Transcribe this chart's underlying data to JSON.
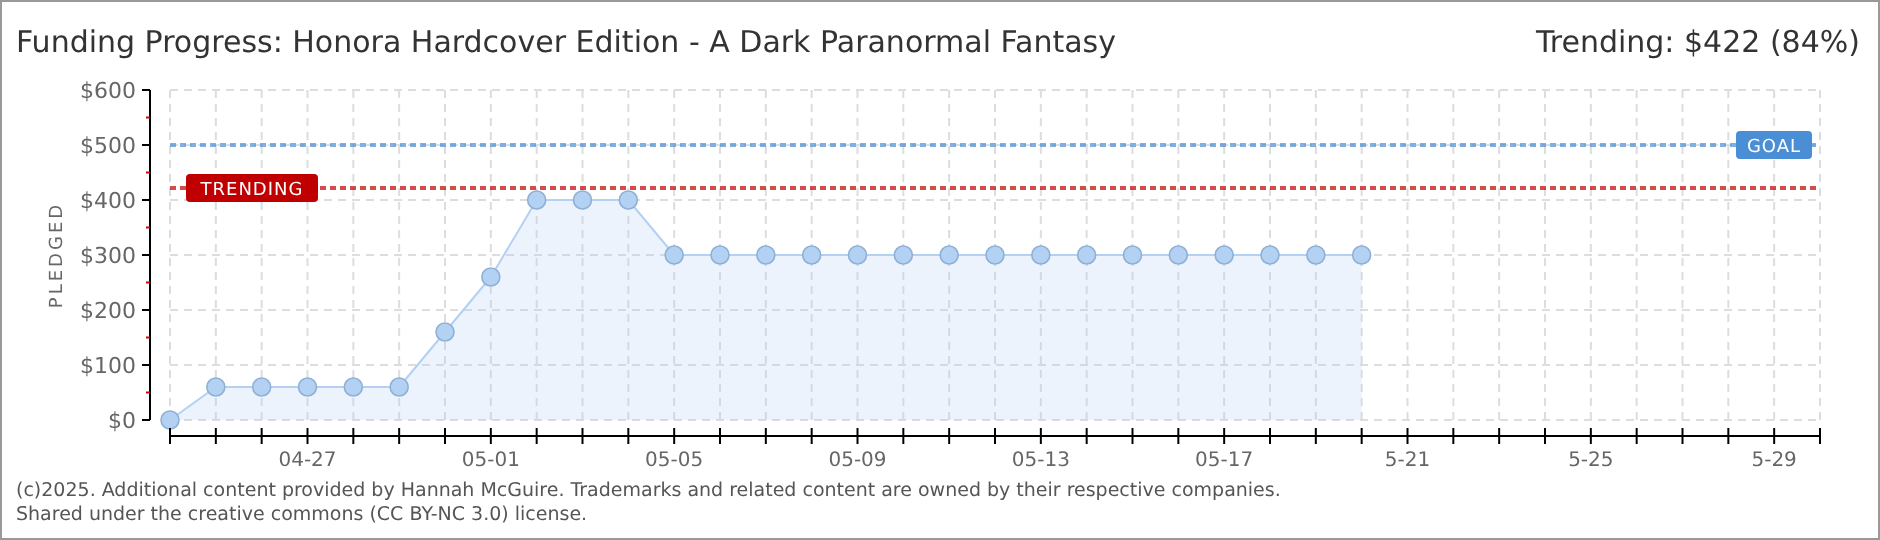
{
  "chart_data": {
    "type": "area",
    "title": "Funding Progress: Honora Hardcover Edition - A Dark Paranormal Fantasy",
    "subtitle": "Trending: $422 (84%)",
    "ylabel": "PLEDGED",
    "x": [
      "--04-24",
      "--04-25",
      "--04-26",
      "--04-27",
      "--04-28",
      "--04-29",
      "--04-30",
      "--05-01",
      "--05-02",
      "--05-03",
      "--05-04",
      "--05-05",
      "--05-06",
      "--05-07",
      "--05-08",
      "--05-09",
      "--05-10",
      "--05-11",
      "--05-12",
      "--05-13",
      "--05-14",
      "--05-15",
      "--05-16",
      "--05-17",
      "--05-18",
      "--05-19",
      "--05-20"
    ],
    "series": [
      {
        "color": "#b3d1f2",
        "values": [
          0,
          60,
          60,
          60,
          60,
          60,
          160,
          260,
          400,
          400,
          400,
          300,
          300,
          300,
          300,
          300,
          300,
          300,
          300,
          300,
          300,
          300,
          300,
          300,
          300,
          300,
          300
        ]
      }
    ],
    "xlim": [
      "--04-24",
      "--05-30"
    ],
    "xticks": [
      {
        "value": "--04-24",
        "label": null
      },
      {
        "value": "--04-25",
        "label": null
      },
      {
        "value": "--04-26",
        "label": null
      },
      {
        "value": "--04-27",
        "label": "04-27"
      },
      {
        "value": "--04-28",
        "label": null
      },
      {
        "value": "--04-29",
        "label": null
      },
      {
        "value": "--04-30",
        "label": null
      },
      {
        "value": "--05-01",
        "label": "05-01"
      },
      {
        "value": "--05-02",
        "label": null
      },
      {
        "value": "--05-03",
        "label": null
      },
      {
        "value": "--05-04",
        "label": null
      },
      {
        "value": "--05-05",
        "label": "05-05"
      },
      {
        "value": "--05-06",
        "label": null
      },
      {
        "value": "--05-07",
        "label": null
      },
      {
        "value": "--05-08",
        "label": null
      },
      {
        "value": "--05-09",
        "label": "05-09"
      },
      {
        "value": "--05-10",
        "label": null
      },
      {
        "value": "--05-11",
        "label": null
      },
      {
        "value": "--05-12",
        "label": null
      },
      {
        "value": "--05-13",
        "label": "05-13"
      },
      {
        "value": "--05-14",
        "label": null
      },
      {
        "value": "--05-15",
        "label": null
      },
      {
        "value": "--05-16",
        "label": null
      },
      {
        "value": "--05-17",
        "label": "05-17"
      },
      {
        "value": "--05-18",
        "label": null
      },
      {
        "value": "--05-19",
        "label": null
      },
      {
        "value": "--05-20",
        "label": null
      },
      {
        "value": "--05-21",
        "label": "5-21"
      },
      {
        "value": "--05-22",
        "label": null
      },
      {
        "value": "--05-23",
        "label": null
      },
      {
        "value": "--05-24",
        "label": null
      },
      {
        "value": "--05-25",
        "label": "5-25"
      },
      {
        "value": "--05-26",
        "label": null
      },
      {
        "value": "--05-27",
        "label": null
      },
      {
        "value": "--05-28",
        "label": null
      },
      {
        "value": "--05-29",
        "label": "5-29"
      },
      {
        "value": "--05-30",
        "label": null
      }
    ],
    "ylim": [
      0,
      600
    ],
    "yticks": [
      {
        "value": 0,
        "label": "$0"
      },
      {
        "value": 50,
        "label": null
      },
      {
        "value": 100,
        "label": "$100"
      },
      {
        "value": 150,
        "label": null
      },
      {
        "value": 200,
        "label": "$200"
      },
      {
        "value": 250,
        "label": null
      },
      {
        "value": 300,
        "label": "$300"
      },
      {
        "value": 350,
        "label": null
      },
      {
        "value": 400,
        "label": "$400"
      },
      {
        "value": 450,
        "label": null
      },
      {
        "value": 500,
        "label": "$500"
      },
      {
        "value": 550,
        "label": null
      },
      {
        "value": 600,
        "label": "$600"
      }
    ],
    "grid": true,
    "marker": "circle",
    "ref_lines": [
      {
        "axis": "y",
        "value": 500,
        "label": "GOAL",
        "color": "#4a8fd6",
        "line_style": "dotted"
      },
      {
        "axis": "y",
        "value": 422,
        "label": "TRENDING",
        "color": "#c00000",
        "line_style": "dotted"
      }
    ],
    "annotations": [
      "(c)2025. Additional content provided by Hannah McGuire. Trademarks and related content are owned by their respective companies.",
      "Shared under the creative commons (CC BY-NC 3.0) license."
    ]
  }
}
